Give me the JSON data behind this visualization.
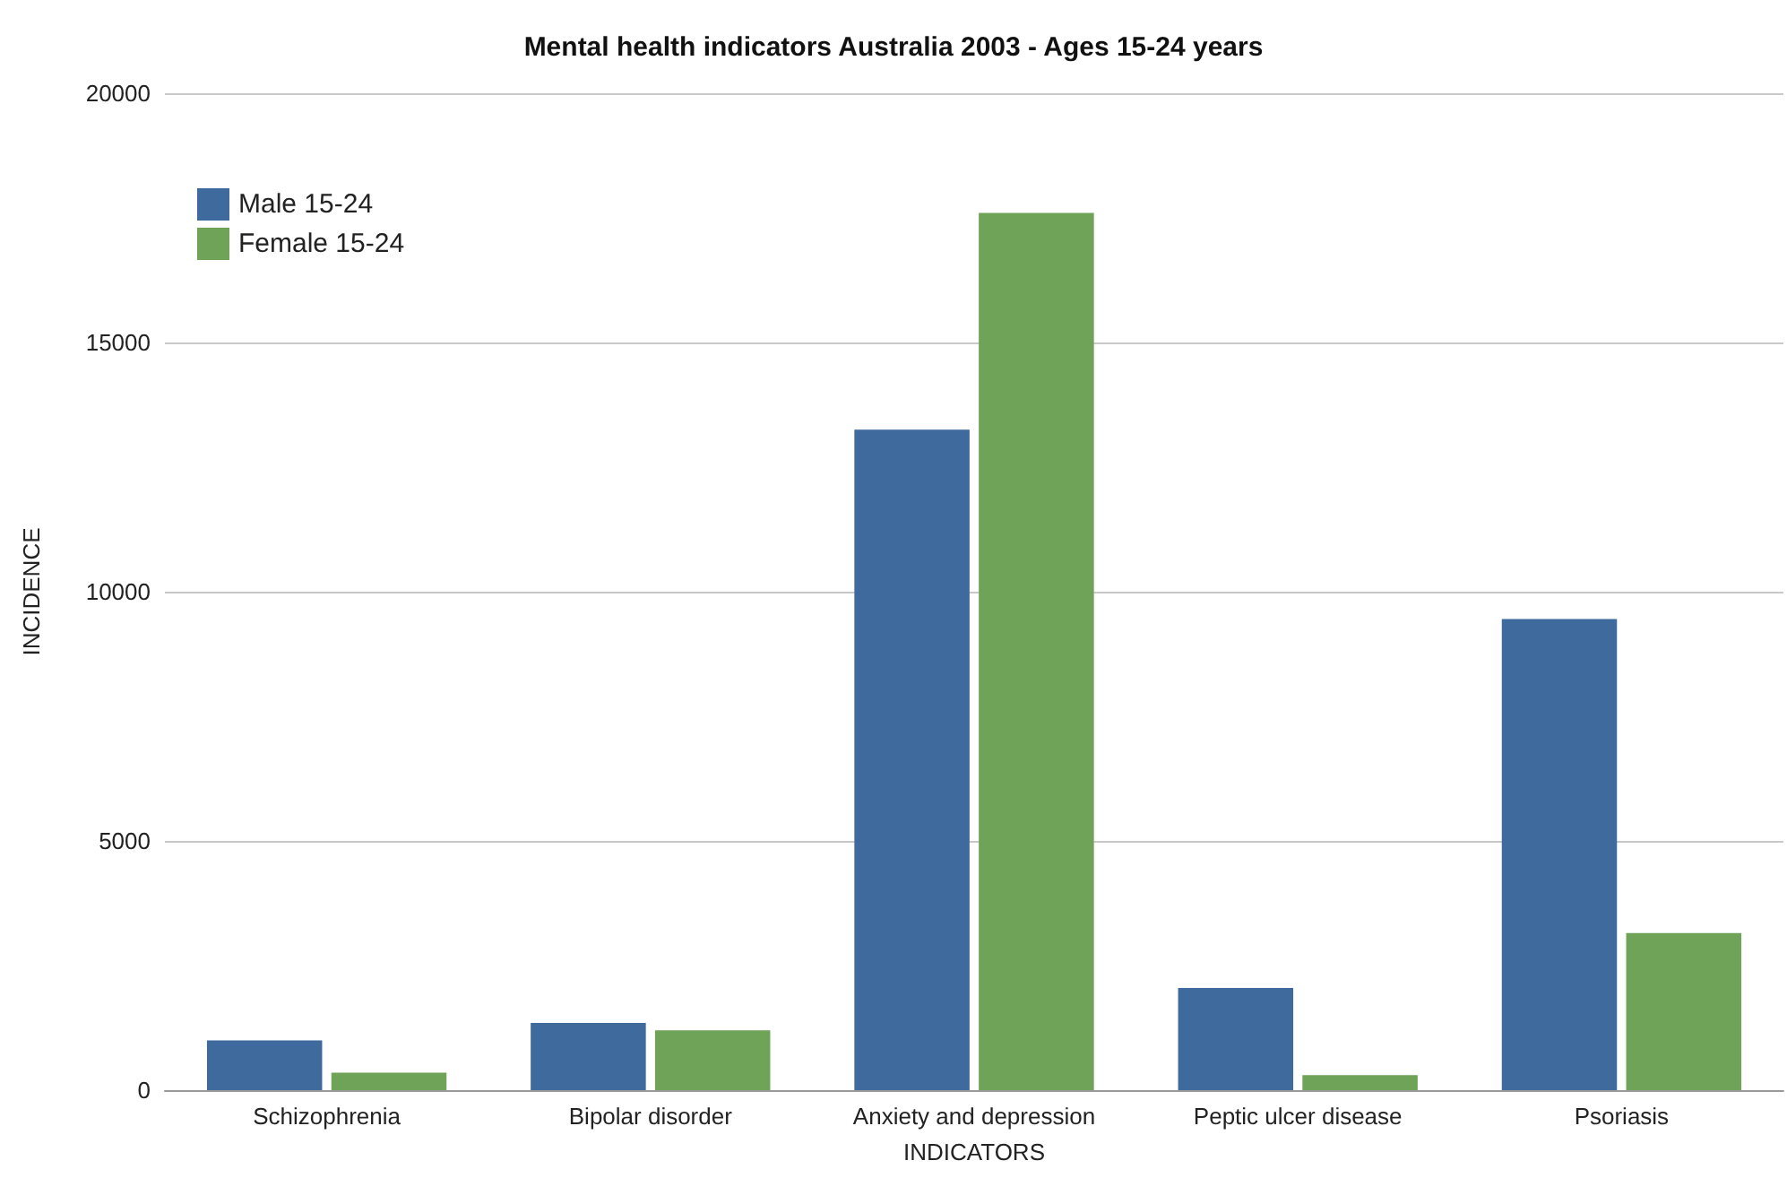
{
  "chart_data": {
    "type": "bar",
    "title": "Mental health indicators Australia 2003 - Ages 15-24 years",
    "xlabel": "INDICATORS",
    "ylabel": "INCIDENCE",
    "categories": [
      "Schizophrenia",
      "Bipolar disorder",
      "Anxiety and depression",
      "Peptic ulcer disease",
      "Psoriasis"
    ],
    "series": [
      {
        "name": "Male 15-24",
        "color": "#3f6a9e",
        "values": [
          1000,
          1350,
          13250,
          2050,
          9450
        ]
      },
      {
        "name": "Female 15-24",
        "color": "#6ea358",
        "values": [
          350,
          1200,
          17600,
          300,
          3150
        ]
      }
    ],
    "ylim": [
      0,
      20000
    ],
    "yticks": [
      0,
      5000,
      10000,
      15000,
      20000
    ],
    "grid": "y",
    "legend": "top left"
  }
}
